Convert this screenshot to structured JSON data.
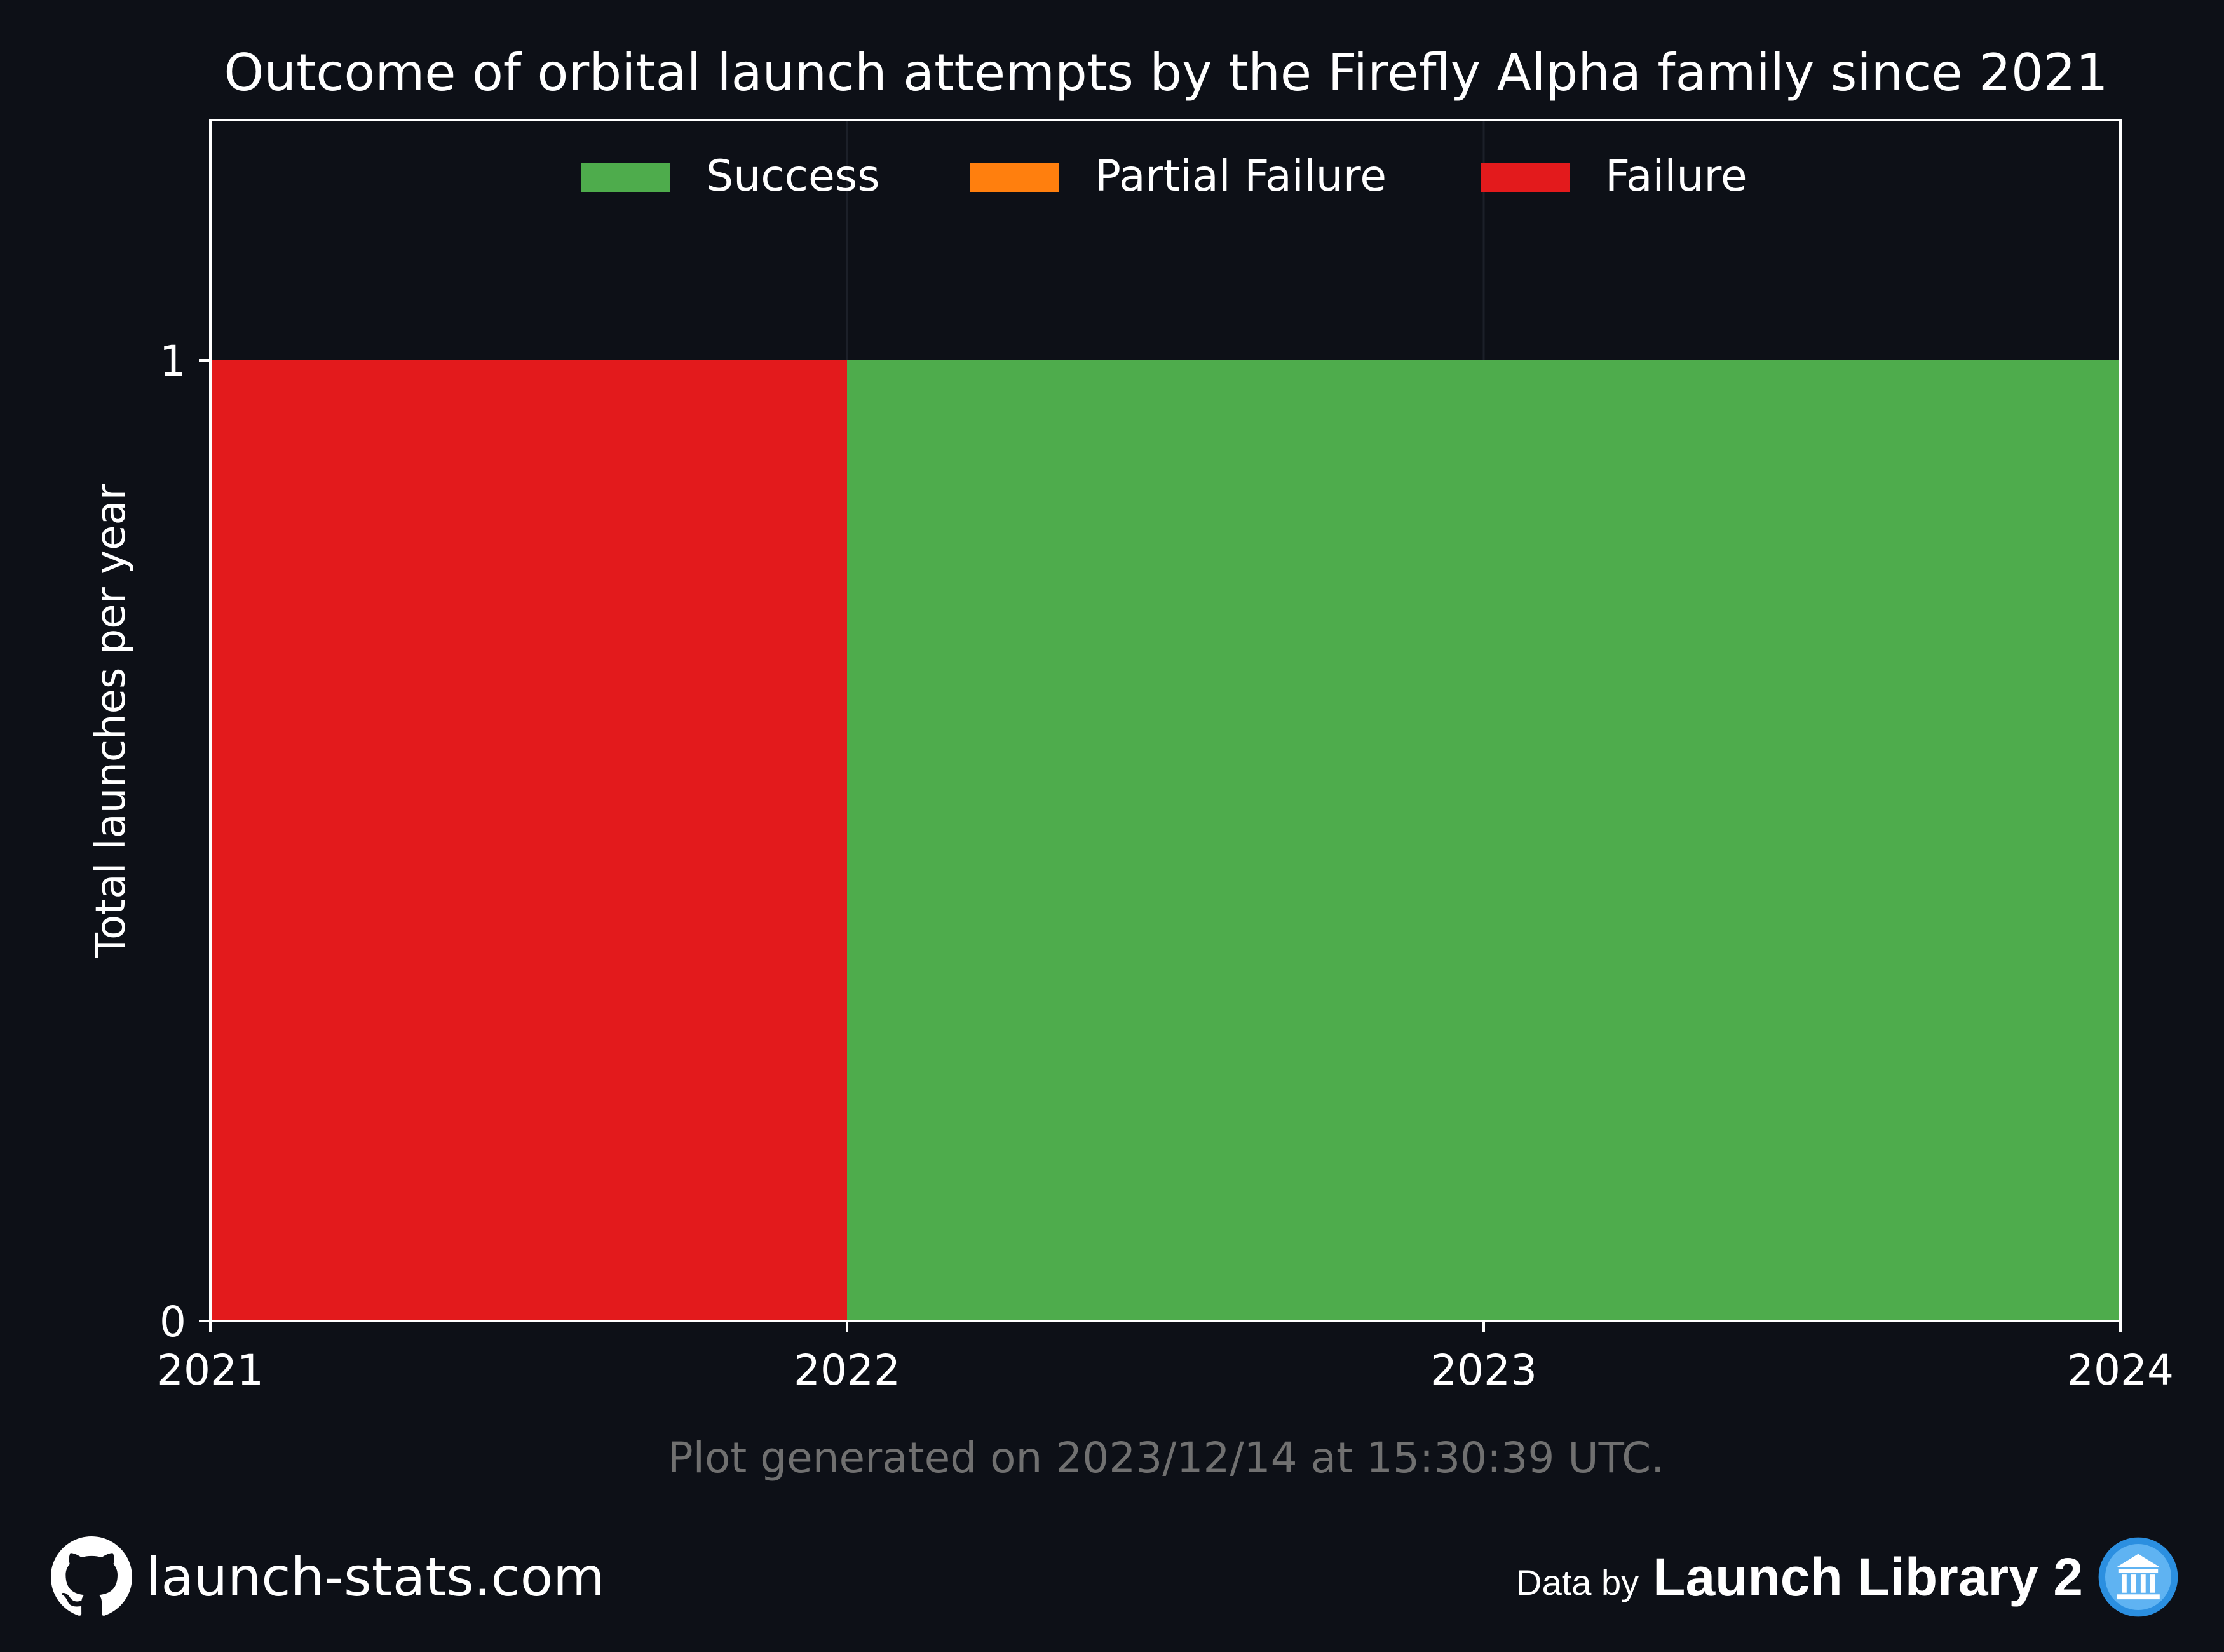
{
  "title": "Outcome of orbital launch attempts by the Firefly Alpha family since 2021",
  "generated_note": "Plot generated on 2023/12/14 at 15:30:39 UTC.",
  "footer": {
    "site": "launch-stats.com",
    "data_by": "Data by",
    "source": "Launch Library 2",
    "site_icon": "github-icon",
    "source_icon": "launch-library-icon"
  },
  "colors": {
    "background": "#0d1017",
    "success": "#4eac4c",
    "partial_failure": "#ff7f0e",
    "failure": "#e31a1c",
    "note": "#707070"
  },
  "chart_data": {
    "type": "area",
    "title": "Outcome of orbital launch attempts by the Firefly Alpha family since 2021",
    "xlabel": "",
    "ylabel": "Total launches per year",
    "x_ticks": [
      "2021",
      "2022",
      "2023",
      "2024"
    ],
    "y_ticks": [
      "0",
      "1"
    ],
    "xlim": [
      2021,
      2024
    ],
    "ylim": [
      0,
      1.25
    ],
    "step": "post",
    "stacked": true,
    "legend_position": "top-center",
    "grid": true,
    "x": [
      2021,
      2022,
      2023,
      2024
    ],
    "series": [
      {
        "name": "Success",
        "color": "#4eac4c",
        "values": [
          0,
          1,
          1,
          1
        ]
      },
      {
        "name": "Partial Failure",
        "color": "#ff7f0e",
        "values": [
          0,
          0,
          0,
          0
        ]
      },
      {
        "name": "Failure",
        "color": "#e31a1c",
        "values": [
          1,
          0,
          0,
          0
        ]
      }
    ]
  }
}
